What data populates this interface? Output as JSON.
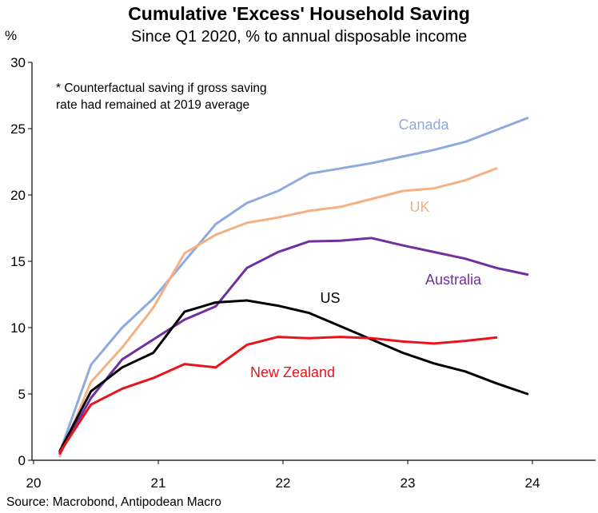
{
  "chart_data": {
    "type": "line",
    "title": "Cumulative 'Excess' Household Saving",
    "subtitle": "Since Q1 2020, % to annual disposable income",
    "ylabel": "%",
    "xlabel": "",
    "ylim": [
      0,
      30
    ],
    "yticks": [
      0,
      5,
      10,
      15,
      20,
      25,
      30
    ],
    "xlim": [
      20,
      24.5
    ],
    "xticks": [
      20,
      21,
      22,
      23,
      24
    ],
    "x_tick_labels": [
      "20",
      "21",
      "22",
      "23",
      "24"
    ],
    "grid": false,
    "note_lines": [
      "* Counterfactual saving if gross saving",
      "rate had remained at 2019 average"
    ],
    "source": "Source: Macrobond, Antipodean Macro",
    "series": [
      {
        "name": "Canada",
        "color": "#8faadc",
        "x": [
          20.21,
          20.46,
          20.71,
          20.96,
          21.21,
          21.46,
          21.71,
          21.96,
          22.21,
          22.46,
          22.71,
          22.96,
          23.21,
          23.46,
          23.71,
          23.96
        ],
        "values": [
          0.6,
          7.2,
          10.0,
          12.2,
          15.0,
          17.8,
          19.4,
          20.3,
          21.6,
          22.0,
          22.4,
          22.9,
          23.4,
          24.0,
          24.9,
          25.8
        ]
      },
      {
        "name": "UK",
        "color": "#f4b183",
        "x": [
          20.21,
          20.46,
          20.71,
          20.96,
          21.21,
          21.46,
          21.71,
          21.96,
          22.21,
          22.46,
          22.71,
          22.96,
          23.21,
          23.46,
          23.71
        ],
        "values": [
          0.3,
          5.9,
          8.5,
          11.5,
          15.6,
          17.0,
          17.9,
          18.3,
          18.8,
          19.1,
          19.7,
          20.3,
          20.5,
          21.1,
          22.0
        ]
      },
      {
        "name": "Australia",
        "color": "#7030a0",
        "x": [
          20.21,
          20.46,
          20.71,
          20.96,
          21.21,
          21.46,
          21.71,
          21.96,
          22.21,
          22.46,
          22.71,
          22.96,
          23.21,
          23.46,
          23.71,
          23.96
        ],
        "values": [
          0.5,
          4.7,
          7.6,
          9.1,
          10.6,
          11.6,
          14.5,
          15.7,
          16.5,
          16.55,
          16.75,
          16.2,
          15.7,
          15.2,
          14.5,
          14.0
        ]
      },
      {
        "name": "US",
        "color": "#000000",
        "x": [
          20.21,
          20.46,
          20.71,
          20.96,
          21.21,
          21.46,
          21.71,
          21.96,
          22.21,
          22.46,
          22.71,
          22.96,
          23.21,
          23.46,
          23.71,
          23.96
        ],
        "values": [
          0.7,
          5.2,
          7.0,
          8.1,
          11.2,
          11.9,
          12.05,
          11.65,
          11.1,
          10.1,
          9.1,
          8.1,
          7.3,
          6.7,
          5.8,
          5.0
        ]
      },
      {
        "name": "New Zealand",
        "color": "#e8141c",
        "x": [
          20.21,
          20.46,
          20.71,
          20.96,
          21.21,
          21.46,
          21.71,
          21.96,
          22.21,
          22.46,
          22.71,
          22.96,
          23.21,
          23.46,
          23.71
        ],
        "values": [
          0.6,
          4.2,
          5.4,
          6.2,
          7.25,
          7.0,
          8.7,
          9.3,
          9.2,
          9.3,
          9.2,
          8.95,
          8.8,
          9.0,
          9.25
        ]
      }
    ]
  }
}
